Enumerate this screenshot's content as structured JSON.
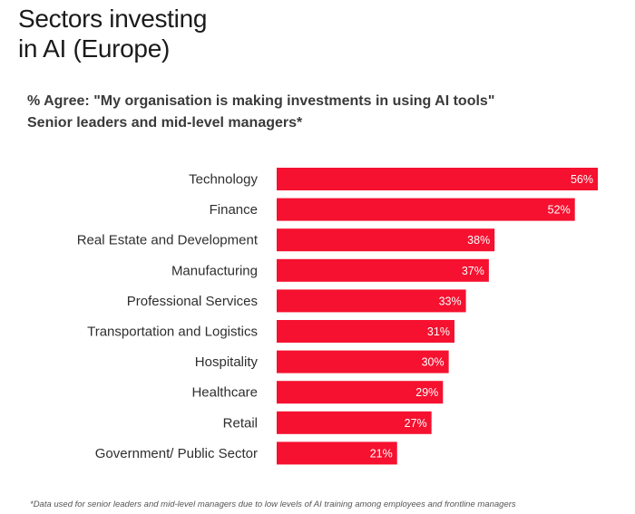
{
  "title": {
    "line1": "Sectors investing",
    "line2": "in AI (Europe)"
  },
  "subtitle": {
    "line1": "% Agree: \"My organisation is making investments in using AI tools\"",
    "line2": "Senior leaders and mid-level managers*"
  },
  "footnote": "*Data used for senior leaders and mid-level managers due to low levels of AI training among employees and frontline managers",
  "colors": {
    "bar": "#f5112f",
    "bar_label": "#ffffff",
    "category_label": "#2e2e2e"
  },
  "chart_data": {
    "type": "bar",
    "orientation": "horizontal",
    "title": "",
    "xlabel": "",
    "ylabel": "",
    "xlim": [
      0,
      56
    ],
    "grid": false,
    "categories": [
      "Technology",
      "Finance",
      "Real Estate and Development",
      "Manufacturing",
      "Professional Services",
      "Transportation and Logistics",
      "Hospitality",
      "Healthcare",
      "Retail",
      "Government/ Public Sector"
    ],
    "values": [
      56,
      52,
      38,
      37,
      33,
      31,
      30,
      29,
      27,
      21
    ],
    "value_labels": [
      "56%",
      "52%",
      "38%",
      "37%",
      "33%",
      "31%",
      "30%",
      "29%",
      "27%",
      "21%"
    ]
  }
}
